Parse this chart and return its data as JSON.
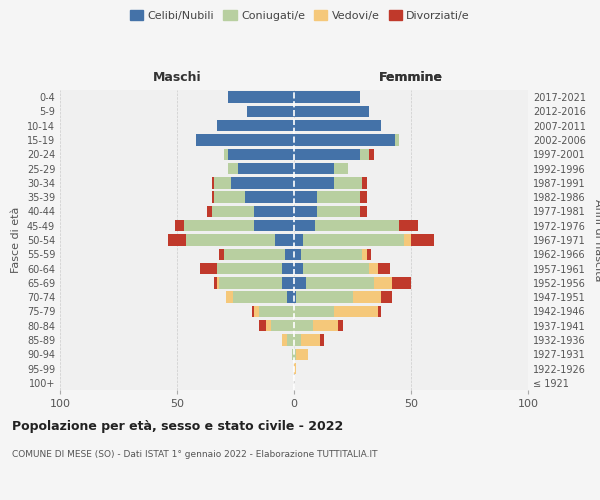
{
  "age_groups": [
    "100+",
    "95-99",
    "90-94",
    "85-89",
    "80-84",
    "75-79",
    "70-74",
    "65-69",
    "60-64",
    "55-59",
    "50-54",
    "45-49",
    "40-44",
    "35-39",
    "30-34",
    "25-29",
    "20-24",
    "15-19",
    "10-14",
    "5-9",
    "0-4"
  ],
  "birth_years": [
    "≤ 1921",
    "1922-1926",
    "1927-1931",
    "1932-1936",
    "1937-1941",
    "1942-1946",
    "1947-1951",
    "1952-1956",
    "1957-1961",
    "1962-1966",
    "1967-1971",
    "1972-1976",
    "1977-1981",
    "1982-1986",
    "1987-1991",
    "1992-1996",
    "1997-2001",
    "2002-2006",
    "2007-2011",
    "2012-2016",
    "2017-2021"
  ],
  "male": {
    "celibi": [
      0,
      0,
      0,
      0,
      0,
      0,
      3,
      5,
      5,
      4,
      8,
      17,
      17,
      21,
      27,
      24,
      28,
      42,
      33,
      20,
      28
    ],
    "coniugati": [
      0,
      0,
      1,
      3,
      10,
      15,
      23,
      27,
      28,
      26,
      38,
      30,
      18,
      13,
      7,
      4,
      2,
      0,
      0,
      0,
      0
    ],
    "vedovi": [
      0,
      0,
      0,
      2,
      2,
      2,
      3,
      1,
      0,
      0,
      0,
      0,
      0,
      0,
      0,
      0,
      0,
      0,
      0,
      0,
      0
    ],
    "divorziati": [
      0,
      0,
      0,
      0,
      3,
      1,
      0,
      1,
      7,
      2,
      8,
      4,
      2,
      1,
      1,
      0,
      0,
      0,
      0,
      0,
      0
    ]
  },
  "female": {
    "nubili": [
      0,
      0,
      0,
      0,
      0,
      0,
      1,
      5,
      4,
      3,
      4,
      9,
      10,
      10,
      17,
      17,
      28,
      43,
      37,
      32,
      28
    ],
    "coniugate": [
      0,
      0,
      1,
      3,
      8,
      17,
      24,
      29,
      28,
      26,
      43,
      36,
      18,
      18,
      12,
      6,
      4,
      2,
      0,
      0,
      0
    ],
    "vedove": [
      0,
      1,
      5,
      8,
      11,
      19,
      12,
      8,
      4,
      2,
      3,
      0,
      0,
      0,
      0,
      0,
      0,
      0,
      0,
      0,
      0
    ],
    "divorziate": [
      0,
      0,
      0,
      2,
      2,
      1,
      5,
      8,
      5,
      2,
      10,
      8,
      3,
      3,
      2,
      0,
      2,
      0,
      0,
      0,
      0
    ]
  },
  "colors": {
    "celibi": "#4472a8",
    "coniugati": "#b8cfa0",
    "vedovi": "#f5c87a",
    "divorziati": "#c0392b"
  },
  "xlim": 100,
  "title": "Popolazione per età, sesso e stato civile - 2022",
  "subtitle": "COMUNE DI MESE (SO) - Dati ISTAT 1° gennaio 2022 - Elaborazione TUTTITALIA.IT",
  "ylabel": "Fasce di età",
  "ylabel_right": "Anni di nascita",
  "xlabel_left": "Maschi",
  "xlabel_right": "Femmine",
  "legend_labels": [
    "Celibi/Nubili",
    "Coniugati/e",
    "Vedovi/e",
    "Divorziati/e"
  ],
  "bg_color": "#f5f5f5",
  "plot_bg": "#f0f0f0"
}
